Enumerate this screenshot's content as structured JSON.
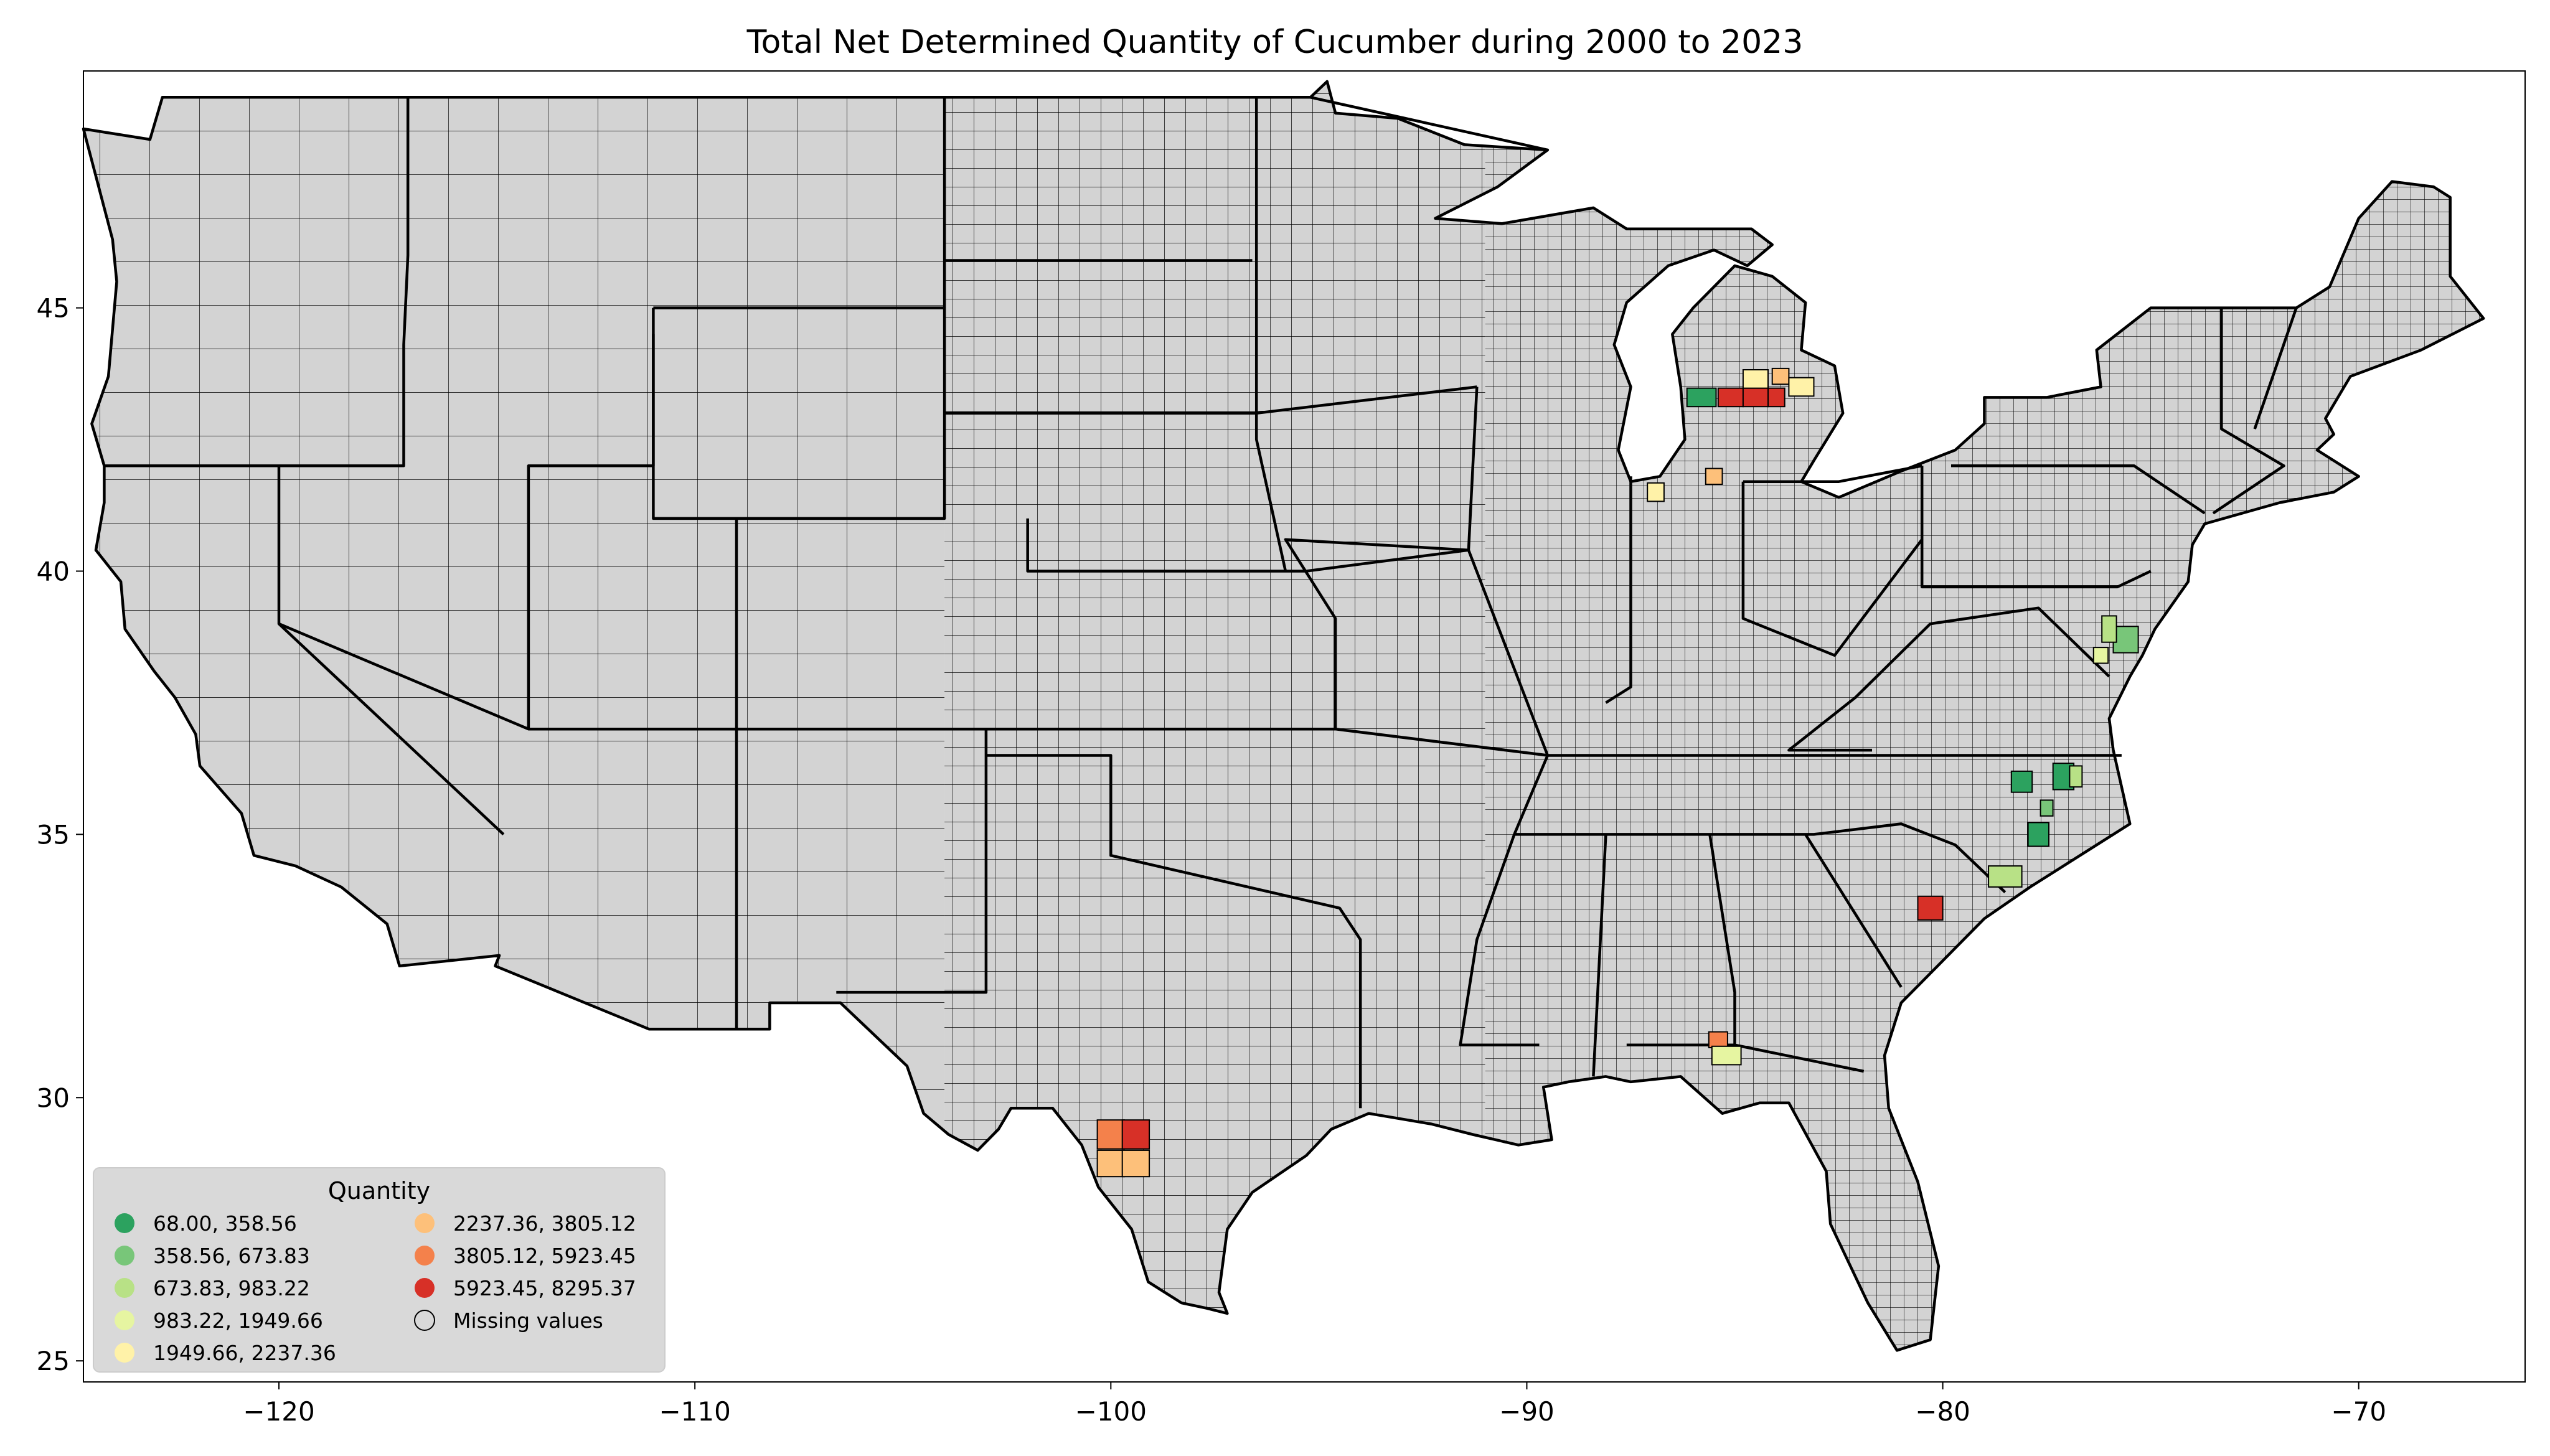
{
  "title": "Total Net Determined Quantity of Cucumber during 2000 to 2023",
  "x_axis": {
    "ticks": [
      -120,
      -110,
      -100,
      -90,
      -80,
      -70
    ],
    "tick_labels": [
      "−120",
      "−110",
      "−100",
      "−90",
      "−80",
      "−70"
    ],
    "range": [
      -124.7,
      -66.0
    ]
  },
  "y_axis": {
    "ticks": [
      25,
      30,
      35,
      40,
      45
    ],
    "tick_labels": [
      "25",
      "30",
      "35",
      "40",
      "45"
    ],
    "range": [
      24.6,
      49.5
    ]
  },
  "legend": {
    "title": "Quantity",
    "placement": "lower-left",
    "entries": [
      {
        "label": "  68.00,  358.56",
        "color": "#2ca25f"
      },
      {
        "label": "  358.56,  673.83",
        "color": "#78c679"
      },
      {
        "label": "  673.83,  983.22",
        "color": "#b8e186"
      },
      {
        "label": "  983.22, 1949.66",
        "color": "#e6f5a1"
      },
      {
        "label": "1949.66, 2237.36",
        "color": "#fff2a8"
      },
      {
        "label": "2237.36, 3805.12",
        "color": "#fdc07a"
      },
      {
        "label": "3805.12, 5923.45",
        "color": "#f4814b"
      },
      {
        "label": "5923.45, 8295.37",
        "color": "#d73027"
      },
      {
        "label": "Missing values",
        "color": "#d3d3d3"
      }
    ]
  },
  "colors": {
    "base_fill": "#d3d3d3",
    "border": "#000000",
    "legend_bg": "#d9d9d9"
  },
  "chart_data": {
    "type": "choropleth",
    "region": "Contiguous United States (counties)",
    "title": "Total Net Determined Quantity of Cucumber during 2000 to 2023",
    "xlim": [
      -124.7,
      -66.0
    ],
    "ylim": [
      24.6,
      49.5
    ],
    "highlighted_counties": [
      {
        "lon": -85.8,
        "lat": 43.3,
        "w": 0.7,
        "h": 0.35,
        "class": 0
      },
      {
        "lon": -85.1,
        "lat": 43.3,
        "w": 0.6,
        "h": 0.35,
        "class": 7
      },
      {
        "lon": -84.5,
        "lat": 43.3,
        "w": 0.6,
        "h": 0.35,
        "class": 7
      },
      {
        "lon": -84.5,
        "lat": 43.65,
        "w": 0.6,
        "h": 0.35,
        "class": 4
      },
      {
        "lon": -84.0,
        "lat": 43.3,
        "w": 0.4,
        "h": 0.35,
        "class": 7
      },
      {
        "lon": -83.9,
        "lat": 43.7,
        "w": 0.4,
        "h": 0.3,
        "class": 5
      },
      {
        "lon": -83.4,
        "lat": 43.5,
        "w": 0.6,
        "h": 0.35,
        "class": 4
      },
      {
        "lon": -86.9,
        "lat": 41.5,
        "w": 0.4,
        "h": 0.35,
        "class": 4
      },
      {
        "lon": -85.5,
        "lat": 41.8,
        "w": 0.4,
        "h": 0.3,
        "class": 5
      },
      {
        "lon": -75.6,
        "lat": 38.7,
        "w": 0.6,
        "h": 0.5,
        "class": 1
      },
      {
        "lon": -76.0,
        "lat": 38.9,
        "w": 0.35,
        "h": 0.5,
        "class": 2
      },
      {
        "lon": -76.2,
        "lat": 38.4,
        "w": 0.35,
        "h": 0.3,
        "class": 3
      },
      {
        "lon": -78.1,
        "lat": 36.0,
        "w": 0.5,
        "h": 0.4,
        "class": 0
      },
      {
        "lon": -77.1,
        "lat": 36.1,
        "w": 0.5,
        "h": 0.5,
        "class": 0
      },
      {
        "lon": -76.8,
        "lat": 36.1,
        "w": 0.3,
        "h": 0.4,
        "class": 2
      },
      {
        "lon": -77.5,
        "lat": 35.5,
        "w": 0.3,
        "h": 0.3,
        "class": 1
      },
      {
        "lon": -77.7,
        "lat": 35.0,
        "w": 0.5,
        "h": 0.45,
        "class": 0
      },
      {
        "lon": -78.5,
        "lat": 34.2,
        "w": 0.8,
        "h": 0.4,
        "class": 2
      },
      {
        "lon": -80.3,
        "lat": 33.6,
        "w": 0.6,
        "h": 0.45,
        "class": 7
      },
      {
        "lon": -85.4,
        "lat": 31.1,
        "w": 0.45,
        "h": 0.3,
        "class": 6
      },
      {
        "lon": -85.2,
        "lat": 30.8,
        "w": 0.7,
        "h": 0.35,
        "class": 3
      },
      {
        "lon": -100.0,
        "lat": 29.3,
        "w": 0.65,
        "h": 0.55,
        "class": 6
      },
      {
        "lon": -99.4,
        "lat": 29.3,
        "w": 0.65,
        "h": 0.55,
        "class": 7
      },
      {
        "lon": -100.0,
        "lat": 28.75,
        "w": 0.65,
        "h": 0.5,
        "class": 5
      },
      {
        "lon": -99.4,
        "lat": 28.75,
        "w": 0.65,
        "h": 0.5,
        "class": 5
      }
    ]
  }
}
